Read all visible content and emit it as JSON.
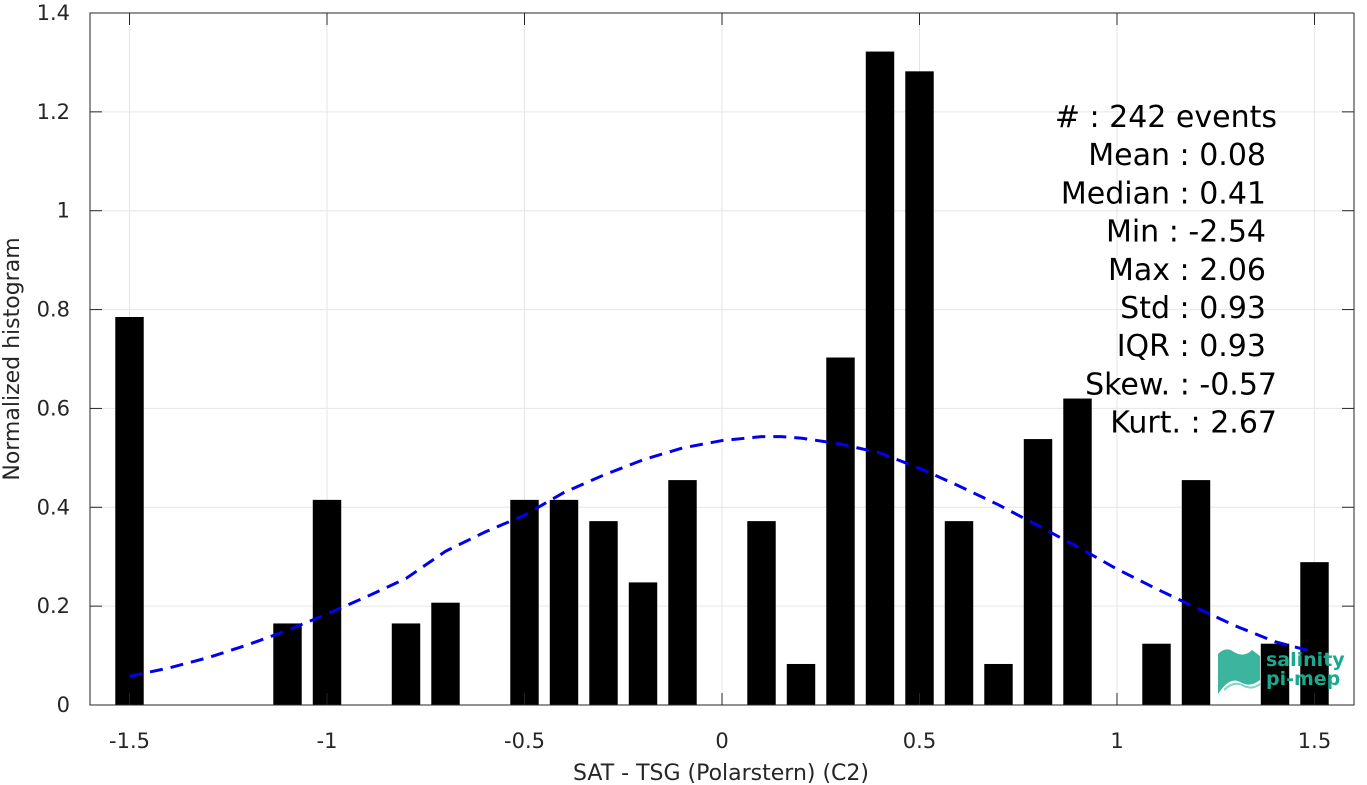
{
  "chart_data": {
    "type": "bar",
    "xlabel": "SAT - TSG (Polarstern) (C2)",
    "ylabel": "Normalized histogram",
    "xlim": [
      -1.6,
      1.6
    ],
    "ylim": [
      0,
      1.4
    ],
    "xticks": [
      -1.5,
      -1,
      -0.5,
      0,
      0.5,
      1,
      1.5
    ],
    "xtick_labels": [
      "-1.5",
      "-1",
      "-0.5",
      "0",
      "0.5",
      "1",
      "1.5"
    ],
    "yticks": [
      0,
      0.2,
      0.4,
      0.6,
      0.8,
      1,
      1.2,
      1.4
    ],
    "ytick_labels": [
      "0",
      "0.2",
      "0.4",
      "0.6",
      "0.8",
      "1",
      "1.2",
      "1.4"
    ],
    "grid": true,
    "bar_color": "#000000",
    "x": [
      -1.5,
      -1.1,
      -1.0,
      -0.8,
      -0.7,
      -0.5,
      -0.4,
      -0.3,
      -0.2,
      -0.1,
      0.1,
      0.2,
      0.3,
      0.4,
      0.5,
      0.6,
      0.7,
      0.8,
      0.9,
      1.1,
      1.2,
      1.4,
      1.5
    ],
    "values": [
      0.785,
      0.165,
      0.415,
      0.165,
      0.207,
      0.415,
      0.415,
      0.372,
      0.248,
      0.455,
      0.372,
      0.083,
      0.703,
      1.322,
      1.282,
      0.372,
      0.083,
      0.538,
      0.62,
      0.124,
      0.455,
      0.124,
      0.289
    ],
    "fit_curve": {
      "color": "#0000ee",
      "style": "dashed",
      "x": [
        -1.5,
        -1.4,
        -1.3,
        -1.2,
        -1.1,
        -1.0,
        -0.9,
        -0.8,
        -0.7,
        -0.6,
        -0.5,
        -0.4,
        -0.3,
        -0.2,
        -0.1,
        0.0,
        0.1,
        0.15,
        0.2,
        0.3,
        0.4,
        0.5,
        0.6,
        0.7,
        0.8,
        0.9,
        1.0,
        1.1,
        1.2,
        1.3,
        1.4,
        1.5
      ],
      "y": [
        0.058,
        0.075,
        0.096,
        0.122,
        0.151,
        0.184,
        0.219,
        0.256,
        0.311,
        0.35,
        0.384,
        0.43,
        0.465,
        0.496,
        0.52,
        0.535,
        0.543,
        0.543,
        0.54,
        0.528,
        0.51,
        0.479,
        0.443,
        0.405,
        0.363,
        0.32,
        0.275,
        0.235,
        0.197,
        0.16,
        0.128,
        0.107
      ]
    },
    "stats": [
      {
        "label": "#  : 242 events",
        "right": false
      },
      {
        "label": "Mean : 0.08",
        "right": true
      },
      {
        "label": "Median : 0.41",
        "right": true
      },
      {
        "label": "Min : -2.54",
        "right": true
      },
      {
        "label": "Max : 2.06",
        "right": true
      },
      {
        "label": "Std : 0.93",
        "right": true
      },
      {
        "label": "IQR : 0.93",
        "right": true
      },
      {
        "label": "Skew. : -0.57",
        "right": false
      },
      {
        "label": "Kurt. : 2.67",
        "right": false
      }
    ]
  },
  "logo": {
    "line1": "salinity",
    "line2": "pi-mep",
    "color": "#1aa88e"
  }
}
